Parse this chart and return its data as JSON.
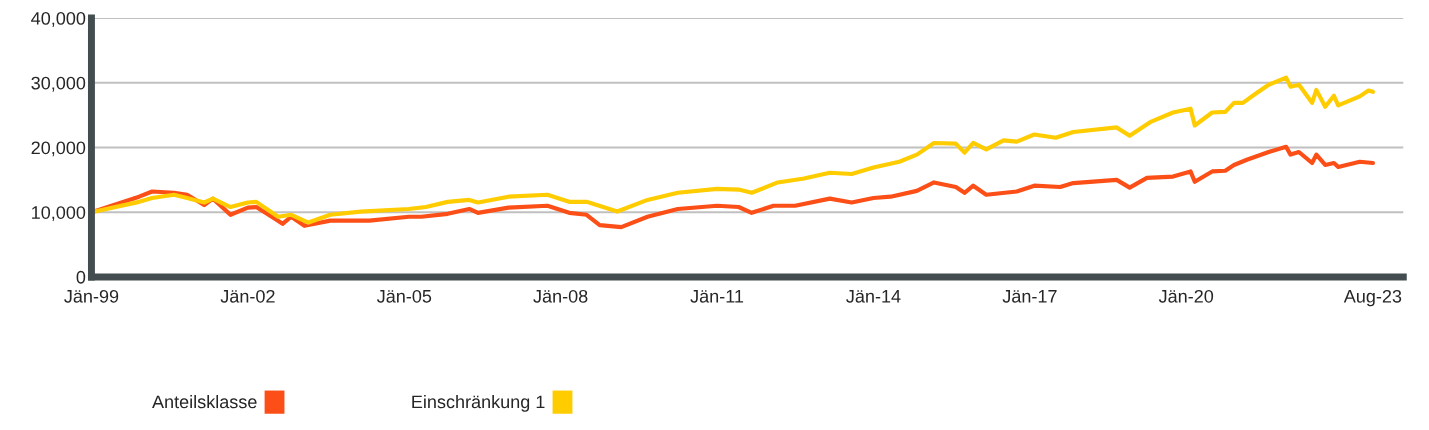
{
  "chart_data": {
    "type": "line",
    "series": [
      {
        "name": "Anteilsklasse",
        "color": "#fc4f17",
        "x": [
          "1999-01",
          "1999-12",
          "2000-03",
          "2000-08",
          "2000-11",
          "2001-03",
          "2001-05",
          "2001-09",
          "2002-01",
          "2002-03",
          "2002-07",
          "2002-09",
          "2002-11",
          "2003-02",
          "2003-08",
          "2004-05",
          "2005-02",
          "2005-05",
          "2005-11",
          "2006-04",
          "2006-06",
          "2007-01",
          "2007-10",
          "2008-03",
          "2008-07",
          "2008-10",
          "2009-03",
          "2009-09",
          "2010-04",
          "2011-01",
          "2011-06",
          "2011-09",
          "2012-02",
          "2012-07",
          "2013-03",
          "2013-08",
          "2014-01",
          "2014-05",
          "2014-11",
          "2015-03",
          "2015-08",
          "2015-10",
          "2015-12",
          "2016-03",
          "2016-10",
          "2017-02",
          "2017-08",
          "2017-11",
          "2018-09",
          "2018-12",
          "2019-04",
          "2019-10",
          "2020-02",
          "2020-03",
          "2020-07",
          "2020-10",
          "2020-12",
          "2021-03",
          "2021-08",
          "2021-12",
          "2022-01",
          "2022-03",
          "2022-06",
          "2022-07",
          "2022-09",
          "2022-11",
          "2022-12",
          "2023-05",
          "2023-08"
        ],
        "values": [
          10000,
          12400,
          13200,
          13000,
          12700,
          11100,
          12100,
          9600,
          10700,
          10800,
          9100,
          8200,
          9300,
          7900,
          8700,
          8700,
          9300,
          9300,
          9750,
          10500,
          9900,
          10700,
          11000,
          9900,
          9600,
          8000,
          7700,
          9300,
          10500,
          11000,
          10800,
          9900,
          11000,
          11000,
          12100,
          11500,
          12200,
          12400,
          13300,
          14600,
          13900,
          13000,
          14100,
          12700,
          13200,
          14100,
          13900,
          14500,
          15000,
          13800,
          15300,
          15500,
          16300,
          14700,
          16300,
          16400,
          17300,
          18100,
          19300,
          20100,
          18900,
          19300,
          17600,
          18900,
          17300,
          17600,
          17000,
          17800,
          17600
        ]
      },
      {
        "name": "Einschränkung 1",
        "color": "#ffcc00",
        "x": [
          "1999-01",
          "1999-12",
          "2000-03",
          "2000-08",
          "2000-11",
          "2001-03",
          "2001-05",
          "2001-09",
          "2002-01",
          "2002-03",
          "2002-08",
          "2002-11",
          "2003-03",
          "2003-08",
          "2004-03",
          "2005-02",
          "2005-06",
          "2005-11",
          "2006-04",
          "2006-06",
          "2007-01",
          "2007-10",
          "2008-03",
          "2008-07",
          "2009-02",
          "2009-09",
          "2010-04",
          "2011-01",
          "2011-06",
          "2011-09",
          "2012-03",
          "2012-09",
          "2013-03",
          "2013-08",
          "2014-01",
          "2014-07",
          "2014-11",
          "2015-03",
          "2015-08",
          "2015-10",
          "2015-12",
          "2016-03",
          "2016-07",
          "2016-10",
          "2017-02",
          "2017-07",
          "2017-11",
          "2018-09",
          "2018-12",
          "2019-05",
          "2019-10",
          "2020-02",
          "2020-03",
          "2020-07",
          "2020-10",
          "2020-12",
          "2021-02",
          "2021-05",
          "2021-08",
          "2021-12",
          "2022-01",
          "2022-03",
          "2022-06",
          "2022-07",
          "2022-09",
          "2022-11",
          "2022-12",
          "2023-05",
          "2023-07",
          "2023-08"
        ],
        "values": [
          10000,
          11600,
          12200,
          12700,
          12200,
          11500,
          12100,
          10800,
          11500,
          11600,
          9300,
          9600,
          8400,
          9600,
          10100,
          10500,
          10800,
          11600,
          11900,
          11500,
          12400,
          12700,
          11600,
          11600,
          10100,
          11900,
          13000,
          13600,
          13500,
          13000,
          14600,
          15200,
          16100,
          15900,
          16900,
          17800,
          18900,
          20700,
          20600,
          19200,
          20700,
          19700,
          21100,
          20900,
          22000,
          21500,
          22400,
          23100,
          21800,
          24000,
          25400,
          26000,
          23400,
          25400,
          25500,
          26900,
          26900,
          28300,
          29700,
          30800,
          29400,
          29700,
          26900,
          28900,
          26300,
          28000,
          26500,
          27900,
          28800,
          28600
        ]
      }
    ],
    "xlim": [
      "1999-01",
      "2024-03"
    ],
    "xticks": [
      {
        "value": "1999-01",
        "label": "Jän-99"
      },
      {
        "value": "2002-01",
        "label": "Jän-02"
      },
      {
        "value": "2005-01",
        "label": "Jän-05"
      },
      {
        "value": "2008-01",
        "label": "Jän-08"
      },
      {
        "value": "2011-01",
        "label": "Jän-11"
      },
      {
        "value": "2014-01",
        "label": "Jän-14"
      },
      {
        "value": "2017-01",
        "label": "Jän-17"
      },
      {
        "value": "2020-01",
        "label": "Jän-20"
      },
      {
        "value": "2023-08",
        "label": "Aug-23"
      }
    ],
    "ylim": [
      0,
      40000
    ],
    "yticks": [
      0,
      {
        "value": 10000,
        "label": "10,000"
      },
      {
        "value": 20000,
        "label": "20,000"
      },
      {
        "value": 30000,
        "label": "30,000"
      },
      {
        "value": 40000,
        "label": "40,000"
      }
    ],
    "grid": "y",
    "legend": "bottom left",
    "line_style": "solid"
  }
}
